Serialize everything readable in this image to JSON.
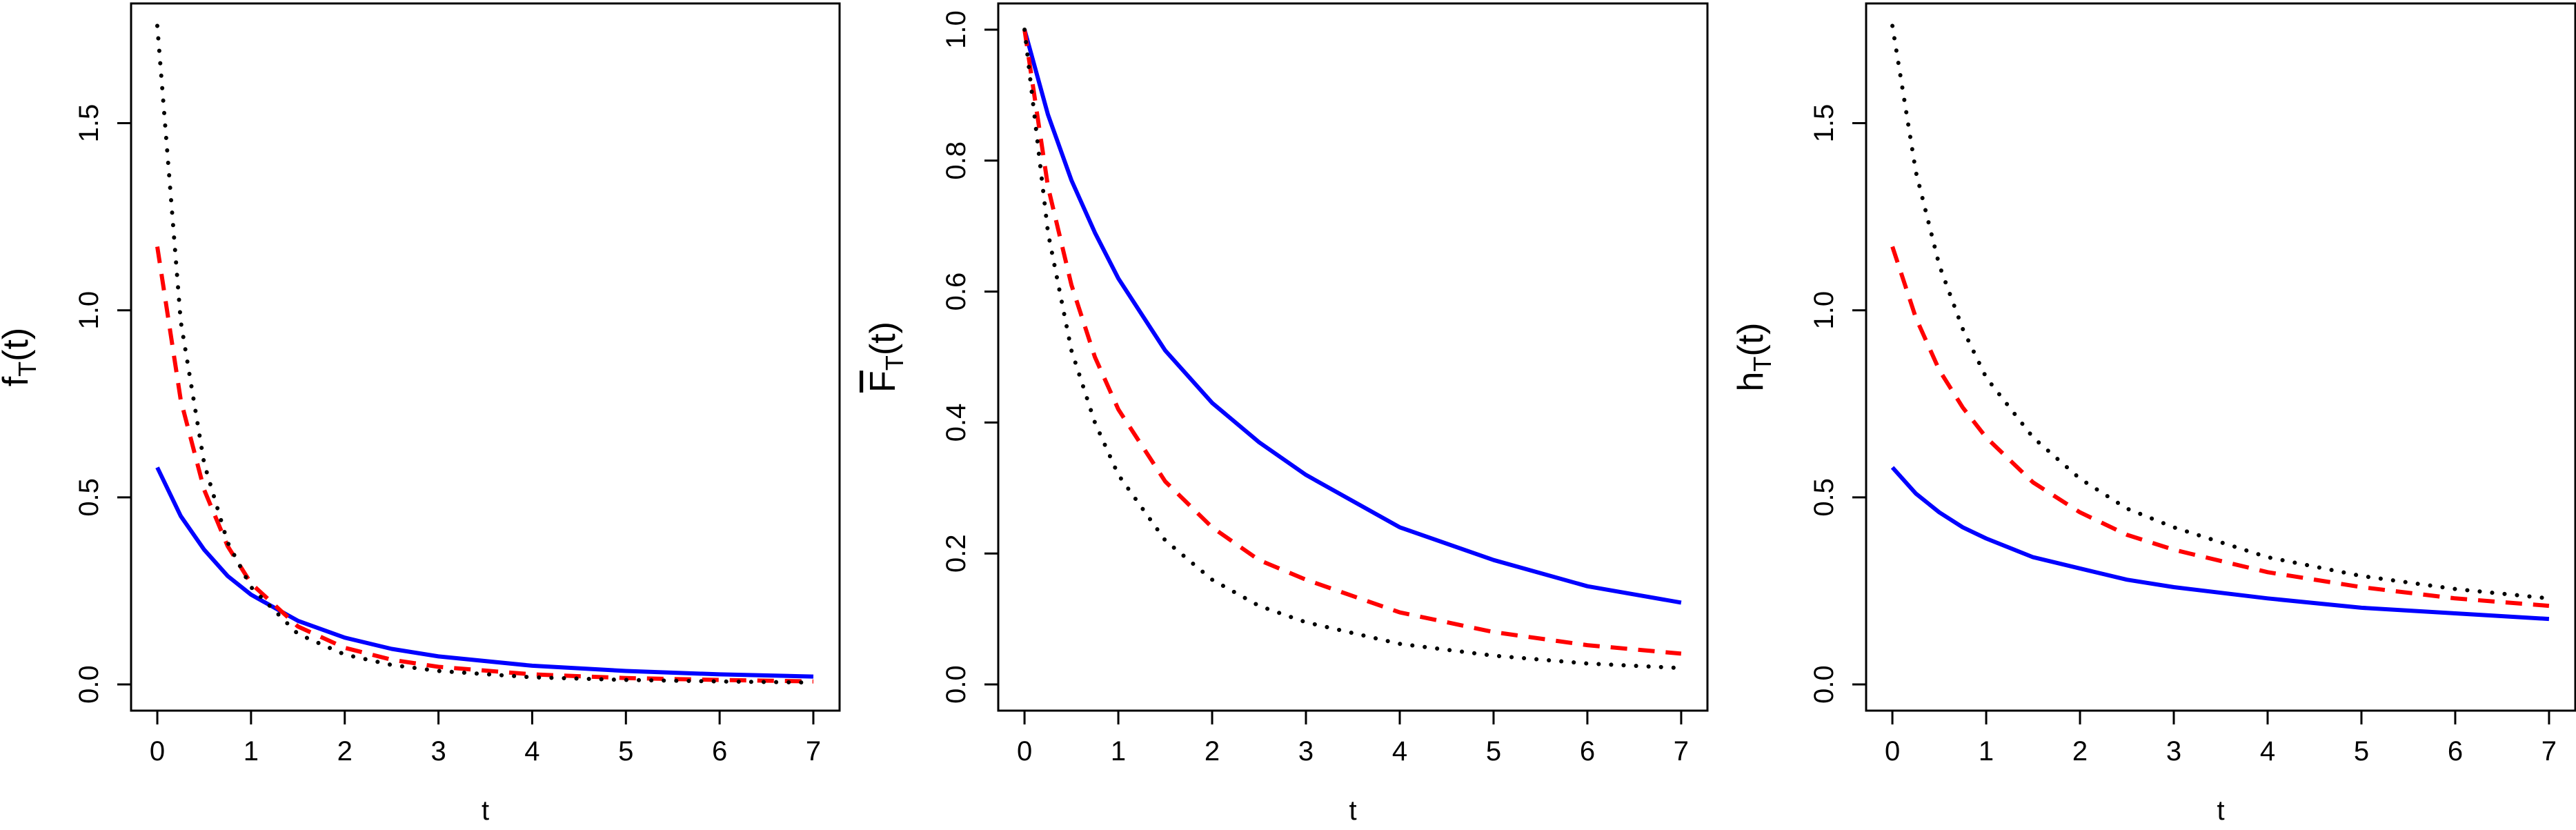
{
  "chart_data": [
    {
      "type": "line",
      "xlabel": "t",
      "ylabel": "f",
      "ylabel_sub": "T",
      "ylabel_tail": "(t)",
      "ylabel_overline": false,
      "xlim": [
        0,
        7
      ],
      "ylim": [
        0,
        1.75
      ],
      "xticks": [
        0,
        1,
        2,
        3,
        4,
        5,
        6,
        7
      ],
      "xtick_labels": [
        "0",
        "1",
        "2",
        "3",
        "4",
        "5",
        "6",
        "7"
      ],
      "yticks": [
        0,
        0.5,
        1,
        1.5
      ],
      "ytick_labels": [
        "0.0",
        "0.5",
        "1.0",
        "1.5"
      ],
      "x": [
        0,
        0.25,
        0.5,
        0.75,
        1,
        1.5,
        2,
        2.5,
        3,
        4,
        5,
        6,
        7
      ],
      "series": [
        {
          "style": "solid",
          "color": "#0000ff",
          "values": [
            0.58,
            0.45,
            0.36,
            0.29,
            0.24,
            0.17,
            0.125,
            0.095,
            0.075,
            0.05,
            0.036,
            0.027,
            0.021
          ]
        },
        {
          "style": "dashed",
          "color": "#ff0000",
          "values": [
            1.17,
            0.76,
            0.52,
            0.37,
            0.27,
            0.155,
            0.098,
            0.066,
            0.047,
            0.027,
            0.017,
            0.012,
            0.008
          ]
        },
        {
          "style": "dotted",
          "color": "#000000",
          "values": [
            1.76,
            0.97,
            0.59,
            0.38,
            0.26,
            0.135,
            0.08,
            0.052,
            0.036,
            0.019,
            0.012,
            0.008,
            0.005
          ]
        }
      ]
    },
    {
      "type": "line",
      "xlabel": "t",
      "ylabel": "F",
      "ylabel_sub": "T",
      "ylabel_tail": "(t)",
      "ylabel_overline": true,
      "xlim": [
        0,
        7
      ],
      "ylim": [
        0,
        1
      ],
      "xticks": [
        0,
        1,
        2,
        3,
        4,
        5,
        6,
        7
      ],
      "xtick_labels": [
        "0",
        "1",
        "2",
        "3",
        "4",
        "5",
        "6",
        "7"
      ],
      "yticks": [
        0,
        0.2,
        0.4,
        0.6,
        0.8,
        1.0
      ],
      "ytick_labels": [
        "0.0",
        "0.2",
        "0.4",
        "0.6",
        "0.8",
        "1.0"
      ],
      "x": [
        0,
        0.25,
        0.5,
        0.75,
        1,
        1.5,
        2,
        2.5,
        3,
        4,
        5,
        6,
        7
      ],
      "series": [
        {
          "style": "solid",
          "color": "#0000ff",
          "values": [
            1.0,
            0.87,
            0.77,
            0.69,
            0.62,
            0.51,
            0.43,
            0.37,
            0.32,
            0.24,
            0.19,
            0.15,
            0.125
          ]
        },
        {
          "style": "dashed",
          "color": "#ff0000",
          "values": [
            1.0,
            0.76,
            0.61,
            0.5,
            0.42,
            0.31,
            0.24,
            0.19,
            0.16,
            0.11,
            0.08,
            0.06,
            0.047
          ]
        },
        {
          "style": "dotted",
          "color": "#000000",
          "values": [
            1.0,
            0.69,
            0.51,
            0.4,
            0.32,
            0.22,
            0.16,
            0.12,
            0.095,
            0.062,
            0.044,
            0.032,
            0.025
          ]
        }
      ]
    },
    {
      "type": "line",
      "xlabel": "t",
      "ylabel": "h",
      "ylabel_sub": "T",
      "ylabel_tail": "(t)",
      "ylabel_overline": false,
      "xlim": [
        0,
        7
      ],
      "ylim": [
        0,
        1.75
      ],
      "xticks": [
        0,
        1,
        2,
        3,
        4,
        5,
        6,
        7
      ],
      "xtick_labels": [
        "0",
        "1",
        "2",
        "3",
        "4",
        "5",
        "6",
        "7"
      ],
      "yticks": [
        0,
        0.5,
        1,
        1.5
      ],
      "ytick_labels": [
        "0.0",
        "0.5",
        "1.0",
        "1.5"
      ],
      "x": [
        0,
        0.25,
        0.5,
        0.75,
        1,
        1.5,
        2,
        2.5,
        3,
        4,
        5,
        6,
        7
      ],
      "series": [
        {
          "style": "solid",
          "color": "#0000ff",
          "values": [
            0.58,
            0.51,
            0.46,
            0.42,
            0.39,
            0.34,
            0.31,
            0.28,
            0.26,
            0.23,
            0.205,
            0.19,
            0.175
          ]
        },
        {
          "style": "dashed",
          "color": "#ff0000",
          "values": [
            1.17,
            0.98,
            0.84,
            0.74,
            0.66,
            0.54,
            0.46,
            0.4,
            0.36,
            0.3,
            0.26,
            0.23,
            0.21
          ]
        },
        {
          "style": "dotted",
          "color": "#000000",
          "values": [
            1.76,
            1.37,
            1.12,
            0.95,
            0.82,
            0.66,
            0.55,
            0.47,
            0.42,
            0.34,
            0.29,
            0.255,
            0.23
          ]
        }
      ]
    }
  ]
}
